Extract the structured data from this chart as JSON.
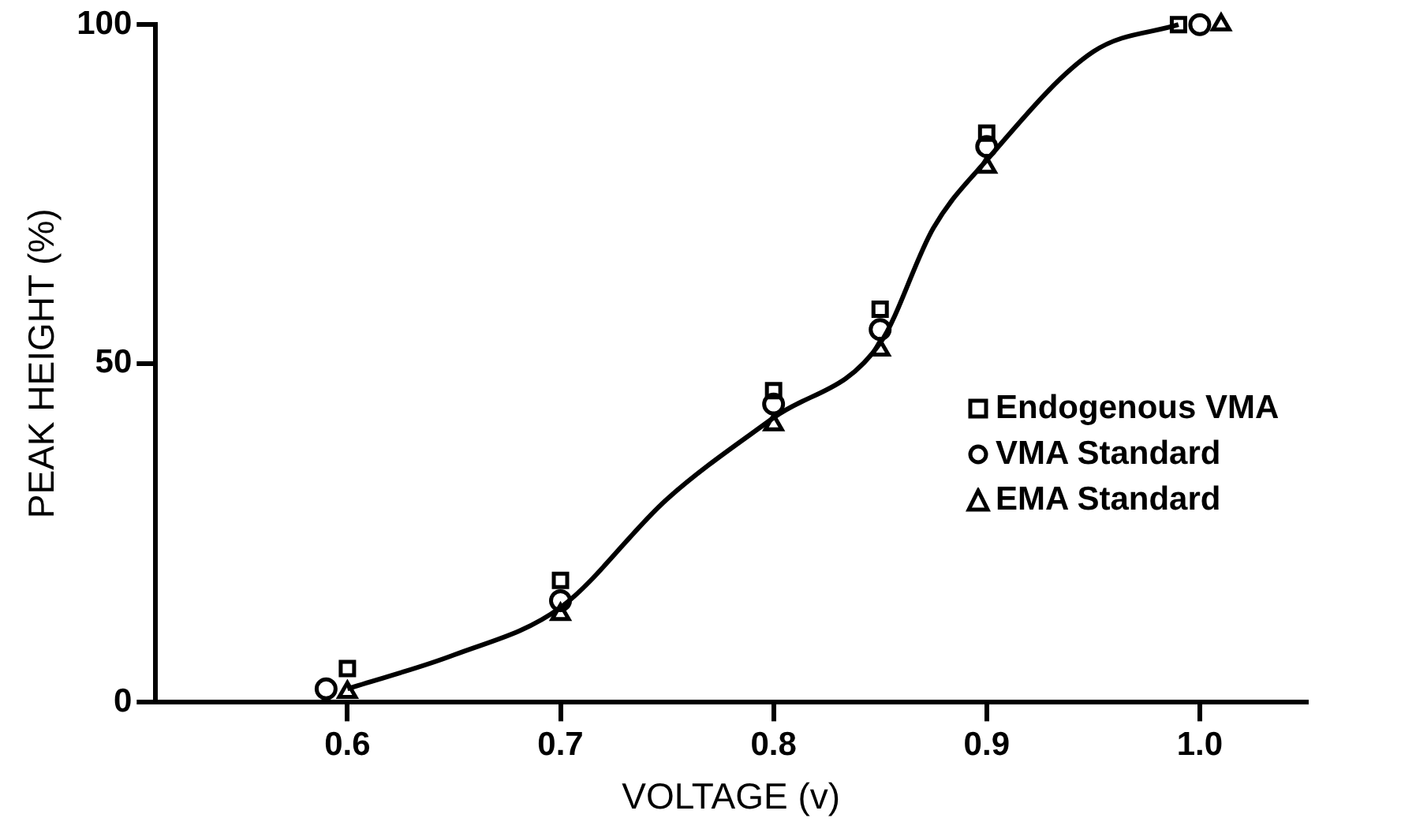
{
  "chart_data": {
    "type": "scatter",
    "xlabel": "VOLTAGE (v)",
    "ylabel": "PEAK HEIGHT (%)",
    "xlim": [
      0.51,
      1.05
    ],
    "xticks": [
      {
        "value": 0.6,
        "label": "0.6"
      },
      {
        "value": 0.7,
        "label": "0.7"
      },
      {
        "value": 0.8,
        "label": "0.8"
      },
      {
        "value": 0.9,
        "label": "0.9"
      },
      {
        "value": 1.0,
        "label": "1.0"
      }
    ],
    "ylim": [
      0,
      100
    ],
    "yticks": [
      0,
      50,
      100
    ],
    "grid": false,
    "legend": "right",
    "series": [
      {
        "name": "Endogenous VMA",
        "color": "#000000",
        "marker": "square",
        "x": [
          0.6,
          0.7,
          0.8,
          0.85,
          0.9,
          0.99
        ],
        "values": [
          5,
          18,
          46,
          58,
          84,
          100
        ]
      },
      {
        "name": "VMA Standard",
        "color": "#000000",
        "marker": "circle",
        "x": [
          0.59,
          0.7,
          0.8,
          0.85,
          0.9,
          1.0
        ],
        "values": [
          2,
          15,
          44,
          55,
          82,
          100
        ]
      },
      {
        "name": "EMA Standard",
        "color": "#000000",
        "marker": "triangle",
        "x": [
          0.6,
          0.7,
          0.8,
          0.85,
          0.9,
          1.01
        ],
        "values": [
          1.5,
          13,
          41,
          52,
          79,
          100
        ]
      },
      {
        "type": "line",
        "color": "#000000",
        "marker": "none",
        "line_style": "solid",
        "x": [
          0.6,
          0.65,
          0.7,
          0.75,
          0.8,
          0.85,
          0.875,
          0.9,
          0.95,
          0.99
        ],
        "values": [
          2,
          7,
          14,
          30,
          42,
          53,
          70,
          80,
          96,
          100
        ]
      }
    ]
  }
}
